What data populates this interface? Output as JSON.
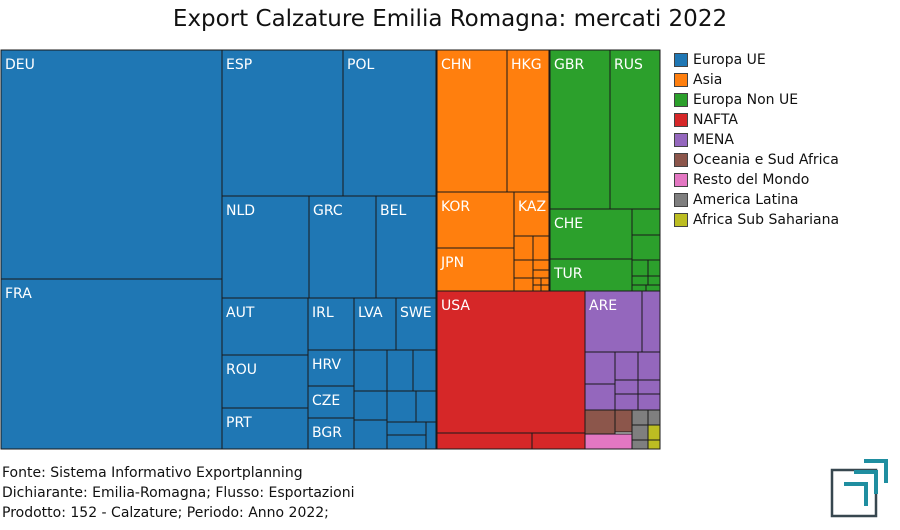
{
  "chart_data": {
    "type": "treemap",
    "title": "Export Calzature Emilia Romagna: mercati 2022",
    "legend_position": "right",
    "groups": [
      {
        "name": "Europa UE",
        "color": "#1f77b4"
      },
      {
        "name": "Asia",
        "color": "#ff7f0e"
      },
      {
        "name": "Europa Non UE",
        "color": "#2ca02c"
      },
      {
        "name": "NAFTA",
        "color": "#d62728"
      },
      {
        "name": "MENA",
        "color": "#9467bd"
      },
      {
        "name": "Oceania e Sud Africa",
        "color": "#8c564b"
      },
      {
        "name": "Resto del Mondo",
        "color": "#e377c2"
      },
      {
        "name": "America Latina",
        "color": "#7f7f7f"
      },
      {
        "name": "Africa Sub Sahariana",
        "color": "#bcbd22"
      }
    ],
    "labels": {
      "DEU": "DEU",
      "FRA": "FRA",
      "ESP": "ESP",
      "POL": "POL",
      "NLD": "NLD",
      "GRC": "GRC",
      "BEL": "BEL",
      "AUT": "AUT",
      "IRL": "IRL",
      "LVA": "LVA",
      "SWE": "SWE",
      "ROU": "ROU",
      "HRV": "HRV",
      "CZE": "CZE",
      "PRT": "PRT",
      "BGR": "BGR",
      "CHN": "CHN",
      "HKG": "HKG",
      "KOR": "KOR",
      "KAZ": "KAZ",
      "JPN": "JPN",
      "GBR": "GBR",
      "RUS": "RUS",
      "CHE": "CHE",
      "TUR": "TUR",
      "USA": "USA",
      "ARE": "ARE"
    }
  },
  "footer": {
    "line1": "Fonte: Sistema Informativo Exportplanning",
    "line2": "Dichiarante: Emilia-Romagna; Flusso: Esportazioni",
    "line3": "Prodotto: 152 - Calzature; Periodo: Anno 2022;"
  }
}
